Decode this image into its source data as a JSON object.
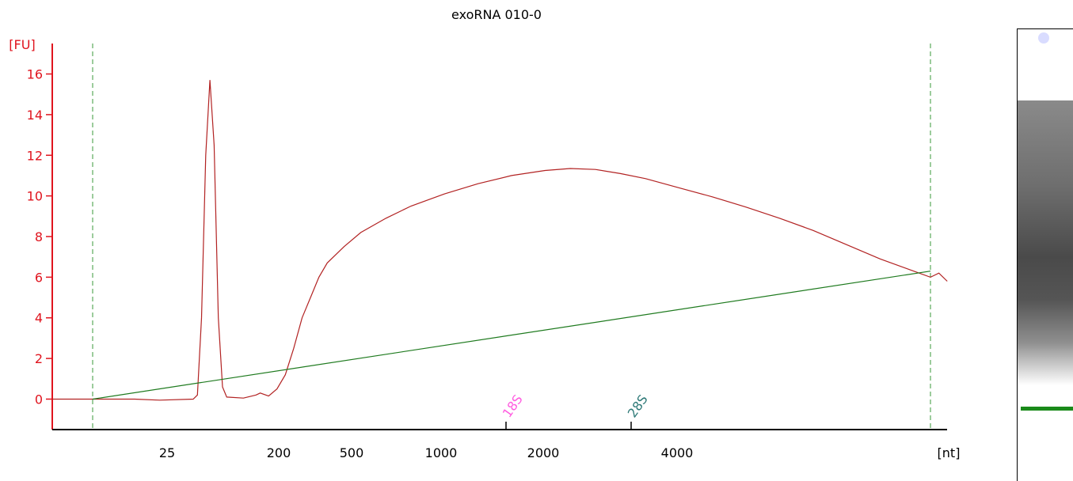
{
  "chart_data": {
    "type": "line",
    "title": "exoRNA 010-0",
    "ylabel": "[FU]",
    "xlabel": "[nt]",
    "ylim": [
      -1.5,
      17.5
    ],
    "y_ticks": [
      0,
      2,
      4,
      6,
      8,
      10,
      12,
      14,
      16
    ],
    "x_ticks": [
      "25",
      "200",
      "500",
      "1000",
      "2000",
      "4000"
    ],
    "markers": [
      {
        "label": "18S",
        "color": "#ff5ce0"
      },
      {
        "label": "28S",
        "color": "#2f7a78"
      }
    ],
    "series": [
      {
        "color": "#b22222",
        "points": [
          [
            0,
            0
          ],
          [
            0.02,
            0.0
          ],
          [
            0.05,
            0.0
          ],
          [
            0.08,
            -0.05
          ],
          [
            0.12,
            0.0
          ],
          [
            0.125,
            0.2
          ],
          [
            0.13,
            4.0
          ],
          [
            0.135,
            12.0
          ],
          [
            0.14,
            15.7
          ],
          [
            0.145,
            12.5
          ],
          [
            0.15,
            4.0
          ],
          [
            0.155,
            0.6
          ],
          [
            0.16,
            0.1
          ],
          [
            0.18,
            0.05
          ],
          [
            0.195,
            0.2
          ],
          [
            0.2,
            0.3
          ],
          [
            0.21,
            0.15
          ],
          [
            0.22,
            0.5
          ],
          [
            0.23,
            1.2
          ],
          [
            0.24,
            2.5
          ],
          [
            0.25,
            4.0
          ],
          [
            0.26,
            5.0
          ],
          [
            0.27,
            6.0
          ],
          [
            0.28,
            6.7
          ],
          [
            0.3,
            7.5
          ],
          [
            0.32,
            8.2
          ],
          [
            0.35,
            8.9
          ],
          [
            0.38,
            9.5
          ],
          [
            0.42,
            10.1
          ],
          [
            0.46,
            10.6
          ],
          [
            0.5,
            11.0
          ],
          [
            0.54,
            11.25
          ],
          [
            0.57,
            11.35
          ],
          [
            0.6,
            11.3
          ],
          [
            0.63,
            11.1
          ],
          [
            0.66,
            10.85
          ],
          [
            0.7,
            10.4
          ],
          [
            0.74,
            9.95
          ],
          [
            0.78,
            9.45
          ],
          [
            0.82,
            8.9
          ],
          [
            0.86,
            8.3
          ],
          [
            0.9,
            7.6
          ],
          [
            0.94,
            6.9
          ],
          [
            0.98,
            6.3
          ],
          [
            1.0,
            6.0
          ],
          [
            1.01,
            6.2
          ],
          [
            1.02,
            5.8
          ]
        ]
      },
      {
        "color": "#1e7a1e",
        "points": [
          [
            0,
            0
          ],
          [
            1.0,
            6.3
          ]
        ]
      }
    ]
  }
}
